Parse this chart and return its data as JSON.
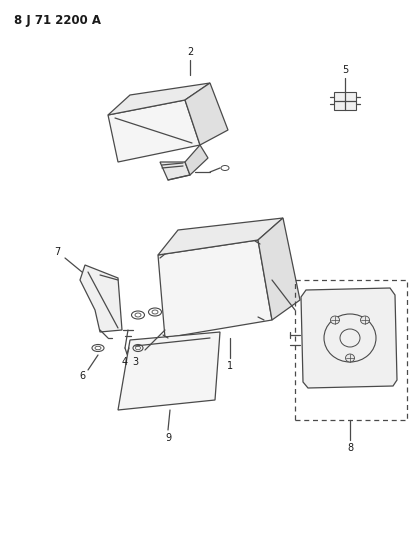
{
  "title": "8 J 71 2200 A",
  "background_color": "#ffffff",
  "line_color": "#4a4a4a",
  "text_color": "#1a1a1a",
  "fig_width": 4.12,
  "fig_height": 5.33,
  "dpi": 100
}
